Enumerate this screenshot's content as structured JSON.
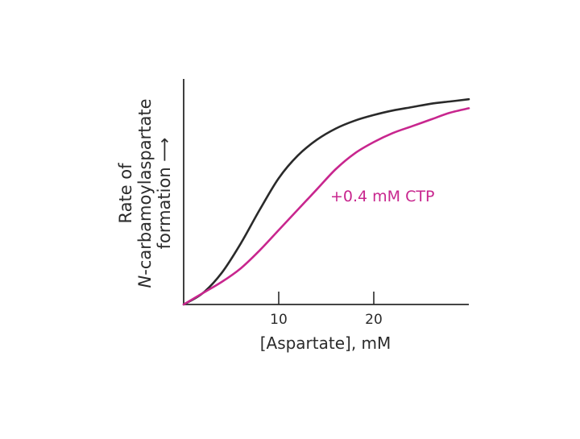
{
  "chart_data": {
    "type": "line",
    "xlabel": "[Aspartate], mM",
    "ylabel_lines": [
      "Rate of",
      "N-carbamoylaspartate",
      "formation ⟶"
    ],
    "ylabel_italic_prefix": "N",
    "xlim": [
      0,
      30
    ],
    "ylim": [
      0,
      1
    ],
    "xticks": [
      "10",
      "20"
    ],
    "xtick_values": [
      10,
      20
    ],
    "grid": false,
    "series": [
      {
        "color": "#2a2a2a",
        "x": [
          0,
          2,
          4,
          6,
          8,
          10,
          12,
          14,
          16,
          18,
          20,
          22,
          24,
          26,
          28,
          30
        ],
        "y": [
          0,
          0.05,
          0.14,
          0.27,
          0.42,
          0.56,
          0.66,
          0.73,
          0.78,
          0.815,
          0.84,
          0.86,
          0.875,
          0.89,
          0.9,
          0.91
        ]
      },
      {
        "name": "+0.4 mM CTP",
        "color": "#c8268e",
        "x": [
          0,
          2,
          4,
          6,
          8,
          10,
          12,
          14,
          16,
          18,
          20,
          22,
          24,
          26,
          28,
          30
        ],
        "y": [
          0,
          0.05,
          0.1,
          0.16,
          0.24,
          0.33,
          0.42,
          0.51,
          0.6,
          0.67,
          0.72,
          0.76,
          0.79,
          0.82,
          0.85,
          0.87
        ]
      }
    ]
  }
}
